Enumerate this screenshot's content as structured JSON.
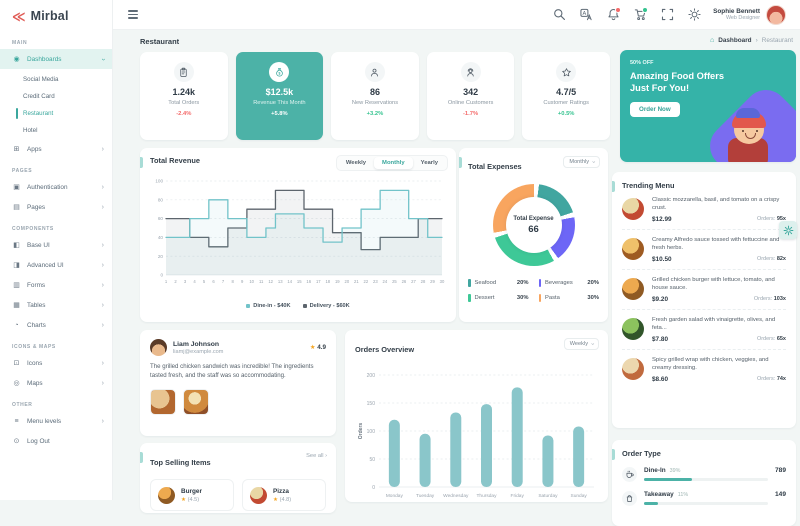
{
  "brand": {
    "name": "Mirbal"
  },
  "sidebar": {
    "sections": [
      {
        "title": "MAIN",
        "items": [
          {
            "label": "Dashboards",
            "glyph": "◉",
            "state": "expanded",
            "chevron": true,
            "children": [
              {
                "label": "Social Media"
              },
              {
                "label": "Credit Card"
              },
              {
                "label": "Restaurant",
                "active": true
              },
              {
                "label": "Hotel"
              }
            ]
          },
          {
            "label": "Apps",
            "glyph": "⊞",
            "chevron": true
          }
        ]
      },
      {
        "title": "PAGES",
        "items": [
          {
            "label": "Authentication",
            "glyph": "▣",
            "chevron": true
          },
          {
            "label": "Pages",
            "glyph": "▤",
            "chevron": true
          }
        ]
      },
      {
        "title": "COMPONENTS",
        "items": [
          {
            "label": "Base UI",
            "glyph": "◧",
            "chevron": true
          },
          {
            "label": "Advanced UI",
            "glyph": "◨",
            "chevron": true
          },
          {
            "label": "Forms",
            "glyph": "▥",
            "chevron": true
          },
          {
            "label": "Tables",
            "glyph": "▦",
            "chevron": true
          },
          {
            "label": "Charts",
            "glyph": "◔",
            "chevron": true
          }
        ]
      },
      {
        "title": "ICONS & MAPS",
        "items": [
          {
            "label": "Icons",
            "glyph": "⊡",
            "chevron": true
          },
          {
            "label": "Maps",
            "glyph": "◎",
            "chevron": true
          }
        ]
      },
      {
        "title": "OTHER",
        "items": [
          {
            "label": "Menu levels",
            "glyph": "≡",
            "chevron": true
          },
          {
            "label": "Log Out",
            "glyph": "⊙",
            "chevron": false
          }
        ]
      }
    ]
  },
  "header": {
    "user_name": "Sophie Bennett",
    "user_role": "Web Designer"
  },
  "page": {
    "title": "Restaurant",
    "breadcrumb_home": "⌂",
    "breadcrumb_main": "Dashboard",
    "breadcrumb_sep": "›",
    "breadcrumb_current": "Restaurant"
  },
  "stats": [
    {
      "icon": "orders-icon",
      "value": "1.24k",
      "label": "Total Orders",
      "delta": "-2.4%",
      "trend": "down",
      "highlight": false
    },
    {
      "icon": "revenue-icon",
      "value": "$12.5k",
      "label": "Revenue This Month",
      "delta": "+5.8%",
      "trend": "up",
      "highlight": true
    },
    {
      "icon": "reservations-icon",
      "value": "86",
      "label": "New Reservations",
      "delta": "+3.2%",
      "trend": "up",
      "highlight": false
    },
    {
      "icon": "customers-icon",
      "value": "342",
      "label": "Online Customers",
      "delta": "-1.7%",
      "trend": "down",
      "highlight": false
    },
    {
      "icon": "ratings-icon",
      "value": "4.7/5",
      "label": "Customer Ratings",
      "delta": "+0.5%",
      "trend": "up",
      "highlight": false
    }
  ],
  "promo": {
    "badge": "50% OFF",
    "title": "Amazing Food Offers Just For You!",
    "button": "Order Now"
  },
  "revenue_card": {
    "title": "Total Revenue",
    "tabs": [
      "Weekly",
      "Monthly",
      "Yearly"
    ],
    "active_tab": "Monthly"
  },
  "expenses_card": {
    "title": "Total Expenses",
    "period": "Monthly",
    "center_label": "Total Expense",
    "center_value": "66"
  },
  "review": {
    "name": "Liam Johnson",
    "email": "liamj@example.com",
    "rating": "4.9",
    "text": "The grilled chicken sandwich was incredible! The ingredients tasted fresh, and the staff was so accommodating."
  },
  "orders_card": {
    "title": "Orders Overview",
    "period": "Weekly"
  },
  "top_selling": {
    "title": "Top Selling Items",
    "see_all": "See all ›",
    "items": [
      {
        "name": "Burger",
        "rating": "(4.5)",
        "img_colors": [
          "#eda94f",
          "#8f5a23"
        ]
      },
      {
        "name": "Pizza",
        "rating": "(4.8)",
        "img_colors": [
          "#e9d7a5",
          "#c24a32"
        ]
      }
    ]
  },
  "trending": {
    "title": "Trending Menu",
    "items": [
      {
        "desc": "Classic mozzarella, basil, and tomato on a crispy crust.",
        "price": "$12.99",
        "orders_label": "Orders:",
        "orders": "95x",
        "image": "pizza-slice-image",
        "img_colors": [
          "#e9d7a5",
          "#c24a32"
        ]
      },
      {
        "desc": "Creamy Alfredo sauce tossed with fettuccine and fresh herbs.",
        "price": "$10.50",
        "orders_label": "Orders:",
        "orders": "82x",
        "image": "pasta-image",
        "img_colors": [
          "#efc06a",
          "#9e5b22"
        ]
      },
      {
        "desc": "Grilled chicken burger with lettuce, tomato, and house sauce.",
        "price": "$9.20",
        "orders_label": "Orders:",
        "orders": "103x",
        "image": "burger-image",
        "img_colors": [
          "#eda94f",
          "#8f5a23"
        ]
      },
      {
        "desc": "Fresh garden salad with vinaigrette, olives, and feta...",
        "price": "$7.80",
        "orders_label": "Orders:",
        "orders": "65x",
        "image": "salad-image",
        "img_colors": [
          "#8cc25e",
          "#31552a"
        ]
      },
      {
        "desc": "Spicy grilled wrap with chicken, veggies, and creamy dressing.",
        "price": "$8.60",
        "orders_label": "Orders:",
        "orders": "74x",
        "image": "wrap-image",
        "img_colors": [
          "#ecd7ae",
          "#c06a3e"
        ]
      }
    ]
  },
  "order_type": {
    "title": "Order Type",
    "rows": [
      {
        "label": "Dine-In",
        "pct": "39%",
        "value": "789",
        "fill": 39,
        "icon": "dinein-icon"
      },
      {
        "label": "Takeaway",
        "pct": "11%",
        "value": "149",
        "fill": 11,
        "icon": "takeaway-icon"
      }
    ]
  },
  "colors": {
    "accent": "#4cb2a7",
    "negative": "#f46a6a",
    "positive": "#34c38f",
    "bar": "#8ac6ca",
    "line_dinein": "#72c3c9",
    "line_delivery": "#5d656d",
    "grid": "#e5eaec",
    "axis_text": "#9aa4ae"
  },
  "chart_data": [
    {
      "type": "line",
      "variant": "step",
      "title": "Total Revenue",
      "x_range": [
        1,
        30
      ],
      "ylim": [
        0,
        100
      ],
      "yticks": [
        0,
        20,
        40,
        60,
        80,
        100
      ],
      "legend_position": "bottom",
      "series": [
        {
          "name": "Dine-in - $40K",
          "color": "#72c3c9",
          "values": [
            40,
            40,
            40,
            60,
            60,
            80,
            80,
            60,
            60,
            40,
            40,
            50,
            65,
            65,
            65,
            50,
            50,
            35,
            35,
            50,
            50,
            70,
            70,
            90,
            90,
            90,
            60,
            60,
            40,
            40
          ]
        },
        {
          "name": "Delivery - $60K",
          "color": "#5d656d",
          "values": [
            60,
            60,
            60,
            40,
            40,
            30,
            30,
            50,
            50,
            70,
            70,
            70,
            90,
            90,
            90,
            70,
            70,
            70,
            45,
            45,
            45,
            27,
            27,
            40,
            40,
            40,
            40,
            60,
            60,
            60
          ]
        }
      ]
    },
    {
      "type": "pie",
      "variant": "donut",
      "title": "Total Expenses",
      "center_label": "Total Expense",
      "center_value": 66,
      "slices": [
        {
          "label": "Seafood",
          "pct": 20,
          "color": "#41a6a0"
        },
        {
          "label": "Beverages",
          "pct": 20,
          "color": "#6d66f6"
        },
        {
          "label": "Dessert",
          "pct": 30,
          "color": "#3ec897"
        },
        {
          "label": "Pasta",
          "pct": 30,
          "color": "#f8a55f"
        }
      ]
    },
    {
      "type": "bar",
      "title": "Orders Overview",
      "ylabel": "Orders",
      "ylim": [
        0,
        200
      ],
      "yticks": [
        0,
        50,
        100,
        150,
        200
      ],
      "categories": [
        "Monday",
        "Tuesday",
        "Wednesday",
        "Thursday",
        "Friday",
        "Saturday",
        "Sunday"
      ],
      "values": [
        120,
        95,
        133,
        148,
        178,
        92,
        108
      ],
      "bar_color": "#8ac6ca"
    }
  ]
}
